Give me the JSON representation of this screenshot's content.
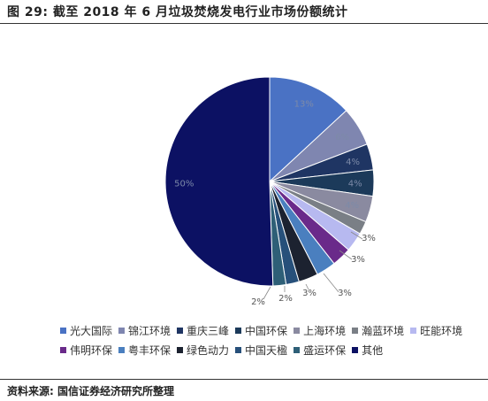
{
  "figure": {
    "title": "图 29: 截至 2018 年 6 月垃圾焚烧发电行业市场份额统计",
    "source": "资料来源: 国信证券经济研究所整理"
  },
  "chart_data": {
    "type": "pie",
    "title": "",
    "legend_position": "bottom",
    "slices": [
      {
        "name": "光大国际",
        "value": 13,
        "label": "13%",
        "color": "#4a72c4"
      },
      {
        "name": "锦江环境",
        "value": 6,
        "label": "6%",
        "color": "#7f86b0"
      },
      {
        "name": "重庆三峰",
        "value": 4,
        "label": "4%",
        "color": "#1f3563"
      },
      {
        "name": "中国环保",
        "value": 4,
        "label": "4%",
        "color": "#1c3a5a"
      },
      {
        "name": "上海环境",
        "value": 4,
        "label": "4%",
        "color": "#8a8aa0"
      },
      {
        "name": "瀚蓝环境",
        "value": 2,
        "label": "",
        "color": "#7a7f86"
      },
      {
        "name": "旺能环境",
        "value": 3,
        "label": "3%",
        "color": "#b7b9f0"
      },
      {
        "name": "伟明环保",
        "value": 3,
        "label": "3%",
        "color": "#6a2a8a"
      },
      {
        "name": "粤丰环保",
        "value": 3,
        "label": "3%",
        "color": "#4a7fbf"
      },
      {
        "name": "绿色动力",
        "value": 3,
        "label": "3%",
        "color": "#1c2230"
      },
      {
        "name": "中国天楹",
        "value": 2,
        "label": "2%",
        "color": "#27507a"
      },
      {
        "name": "盛运环保",
        "value": 2,
        "label": "2%",
        "color": "#2e5f77"
      },
      {
        "name": "其他",
        "value": 50,
        "label": "50%",
        "color": "#0c1163"
      }
    ]
  }
}
